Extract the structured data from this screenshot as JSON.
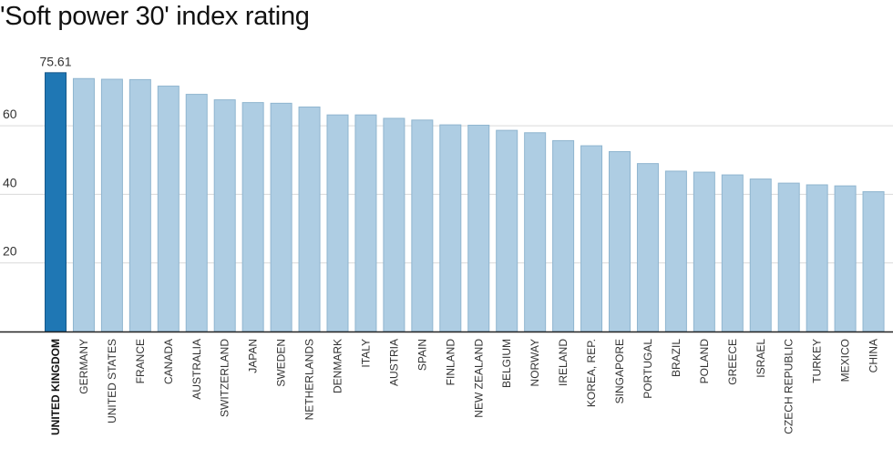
{
  "chart_data": {
    "type": "bar",
    "title": "'Soft power 30' index rating",
    "categories": [
      "UNITED KINGDOM",
      "GERMANY",
      "UNITED STATES",
      "FRANCE",
      "CANADA",
      "AUSTRALIA",
      "SWITZERLAND",
      "JAPAN",
      "SWEDEN",
      "NETHERLANDS",
      "DENMARK",
      "ITALY",
      "AUSTRIA",
      "SPAIN",
      "FINLAND",
      "NEW ZEALAND",
      "BELGIUM",
      "NORWAY",
      "IRELAND",
      "KOREA, REP.",
      "SINGAPORE",
      "PORTUGAL",
      "BRAZIL",
      "POLAND",
      "GREECE",
      "ISRAEL",
      "CZECH REPUBLIC",
      "TURKEY",
      "MEXICO",
      "CHINA"
    ],
    "values": [
      75.61,
      73.9,
      73.7,
      73.6,
      71.7,
      69.3,
      67.7,
      66.9,
      66.7,
      65.6,
      63.3,
      63.3,
      62.3,
      61.8,
      60.4,
      60.3,
      58.8,
      58.1,
      55.8,
      54.3,
      52.6,
      49.1,
      46.9,
      46.6,
      45.8,
      44.6,
      43.4,
      42.9,
      42.6,
      40.9
    ],
    "highlight_index": 0,
    "data_labels": [
      {
        "index": 0,
        "text": "75.61"
      }
    ],
    "yticks": [
      20,
      40,
      60
    ],
    "ylim": [
      0,
      80
    ],
    "xlabel": "",
    "ylabel": "",
    "grid": true,
    "colors": {
      "highlight": "#1f77b4",
      "bar": "#aecde3",
      "bar_edge": "#8fb5cf",
      "highlight_edge": "#16588a",
      "grid": "#d9d9d9",
      "axis": "#222222"
    }
  }
}
